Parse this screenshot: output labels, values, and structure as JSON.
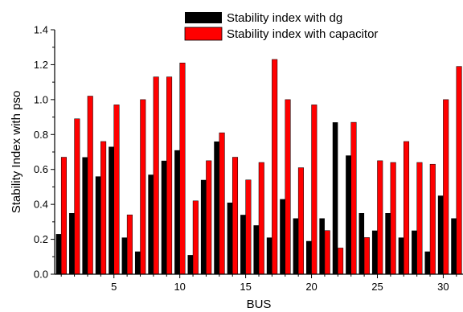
{
  "chart_data": {
    "type": "bar",
    "xlabel": "BUS",
    "ylabel": "Stability Index with pso",
    "ylim": [
      0,
      1.4
    ],
    "xlim": [
      0.5,
      31.5
    ],
    "y_ticks": [
      0.0,
      0.2,
      0.4,
      0.6,
      0.8,
      1.0,
      1.2,
      1.4
    ],
    "y_tick_labels": [
      "0.0",
      "0.2",
      "0.4",
      "0.6",
      "0.8",
      "1.0",
      "1.2",
      "1.4"
    ],
    "x_ticks": [
      5,
      10,
      15,
      20,
      25,
      30
    ],
    "x_tick_labels": [
      "5",
      "10",
      "15",
      "20",
      "25",
      "30"
    ],
    "grid": false,
    "legend_position": "top-right",
    "categories": [
      1,
      2,
      3,
      4,
      5,
      6,
      7,
      8,
      9,
      10,
      11,
      12,
      13,
      14,
      15,
      16,
      17,
      18,
      19,
      20,
      21,
      22,
      23,
      24,
      25,
      26,
      27,
      28,
      29,
      30,
      31
    ],
    "series": [
      {
        "name": "Stability index with dg",
        "color": "#000000",
        "values": [
          0.23,
          0.35,
          0.67,
          0.56,
          0.73,
          0.21,
          0.13,
          0.57,
          0.65,
          0.71,
          0.11,
          0.54,
          0.76,
          0.41,
          0.34,
          0.28,
          0.21,
          0.43,
          0.32,
          0.19,
          0.32,
          0.87,
          0.68,
          0.35,
          0.25,
          0.35,
          0.21,
          0.25,
          0.13,
          0.45,
          0.32
        ]
      },
      {
        "name": "Stability index with capacitor",
        "color": "#ff0000",
        "values": [
          0.67,
          0.89,
          1.02,
          0.76,
          0.97,
          0.34,
          1.0,
          1.13,
          1.13,
          1.21,
          0.42,
          0.65,
          0.81,
          0.67,
          0.54,
          0.64,
          1.23,
          1.0,
          0.61,
          0.97,
          0.25,
          0.15,
          0.87,
          0.21,
          0.65,
          0.64,
          0.76,
          0.64,
          0.63,
          1.0,
          1.19
        ]
      }
    ]
  }
}
